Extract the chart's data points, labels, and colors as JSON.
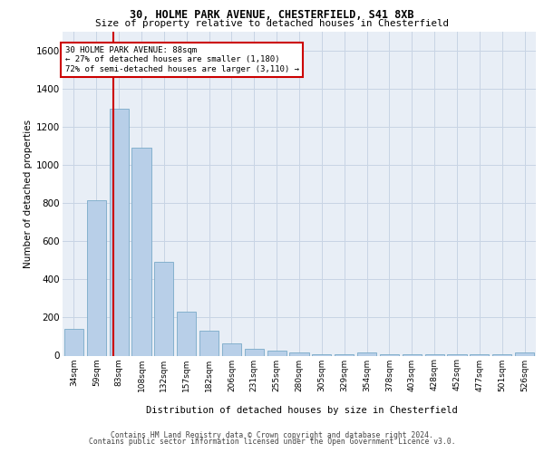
{
  "title_line1": "30, HOLME PARK AVENUE, CHESTERFIELD, S41 8XB",
  "title_line2": "Size of property relative to detached houses in Chesterfield",
  "xlabel": "Distribution of detached houses by size in Chesterfield",
  "ylabel": "Number of detached properties",
  "footer_line1": "Contains HM Land Registry data © Crown copyright and database right 2024.",
  "footer_line2": "Contains public sector information licensed under the Open Government Licence v3.0.",
  "bar_labels": [
    "34sqm",
    "59sqm",
    "83sqm",
    "108sqm",
    "132sqm",
    "157sqm",
    "182sqm",
    "206sqm",
    "231sqm",
    "255sqm",
    "280sqm",
    "305sqm",
    "329sqm",
    "354sqm",
    "378sqm",
    "403sqm",
    "428sqm",
    "452sqm",
    "477sqm",
    "501sqm",
    "526sqm"
  ],
  "bar_values": [
    140,
    815,
    1295,
    1090,
    490,
    230,
    130,
    65,
    38,
    28,
    15,
    5,
    5,
    18,
    5,
    5,
    5,
    5,
    5,
    5,
    15
  ],
  "bar_color": "#b8cfe8",
  "bar_edge_color": "#7aaac8",
  "grid_color": "#c8d4e4",
  "bg_color": "#e8eef6",
  "vline_color": "#cc0000",
  "annotation_text": "30 HOLME PARK AVENUE: 88sqm\n← 27% of detached houses are smaller (1,180)\n72% of semi-detached houses are larger (3,110) →",
  "ylim": [
    0,
    1700
  ],
  "yticks": [
    0,
    200,
    400,
    600,
    800,
    1000,
    1200,
    1400,
    1600
  ]
}
